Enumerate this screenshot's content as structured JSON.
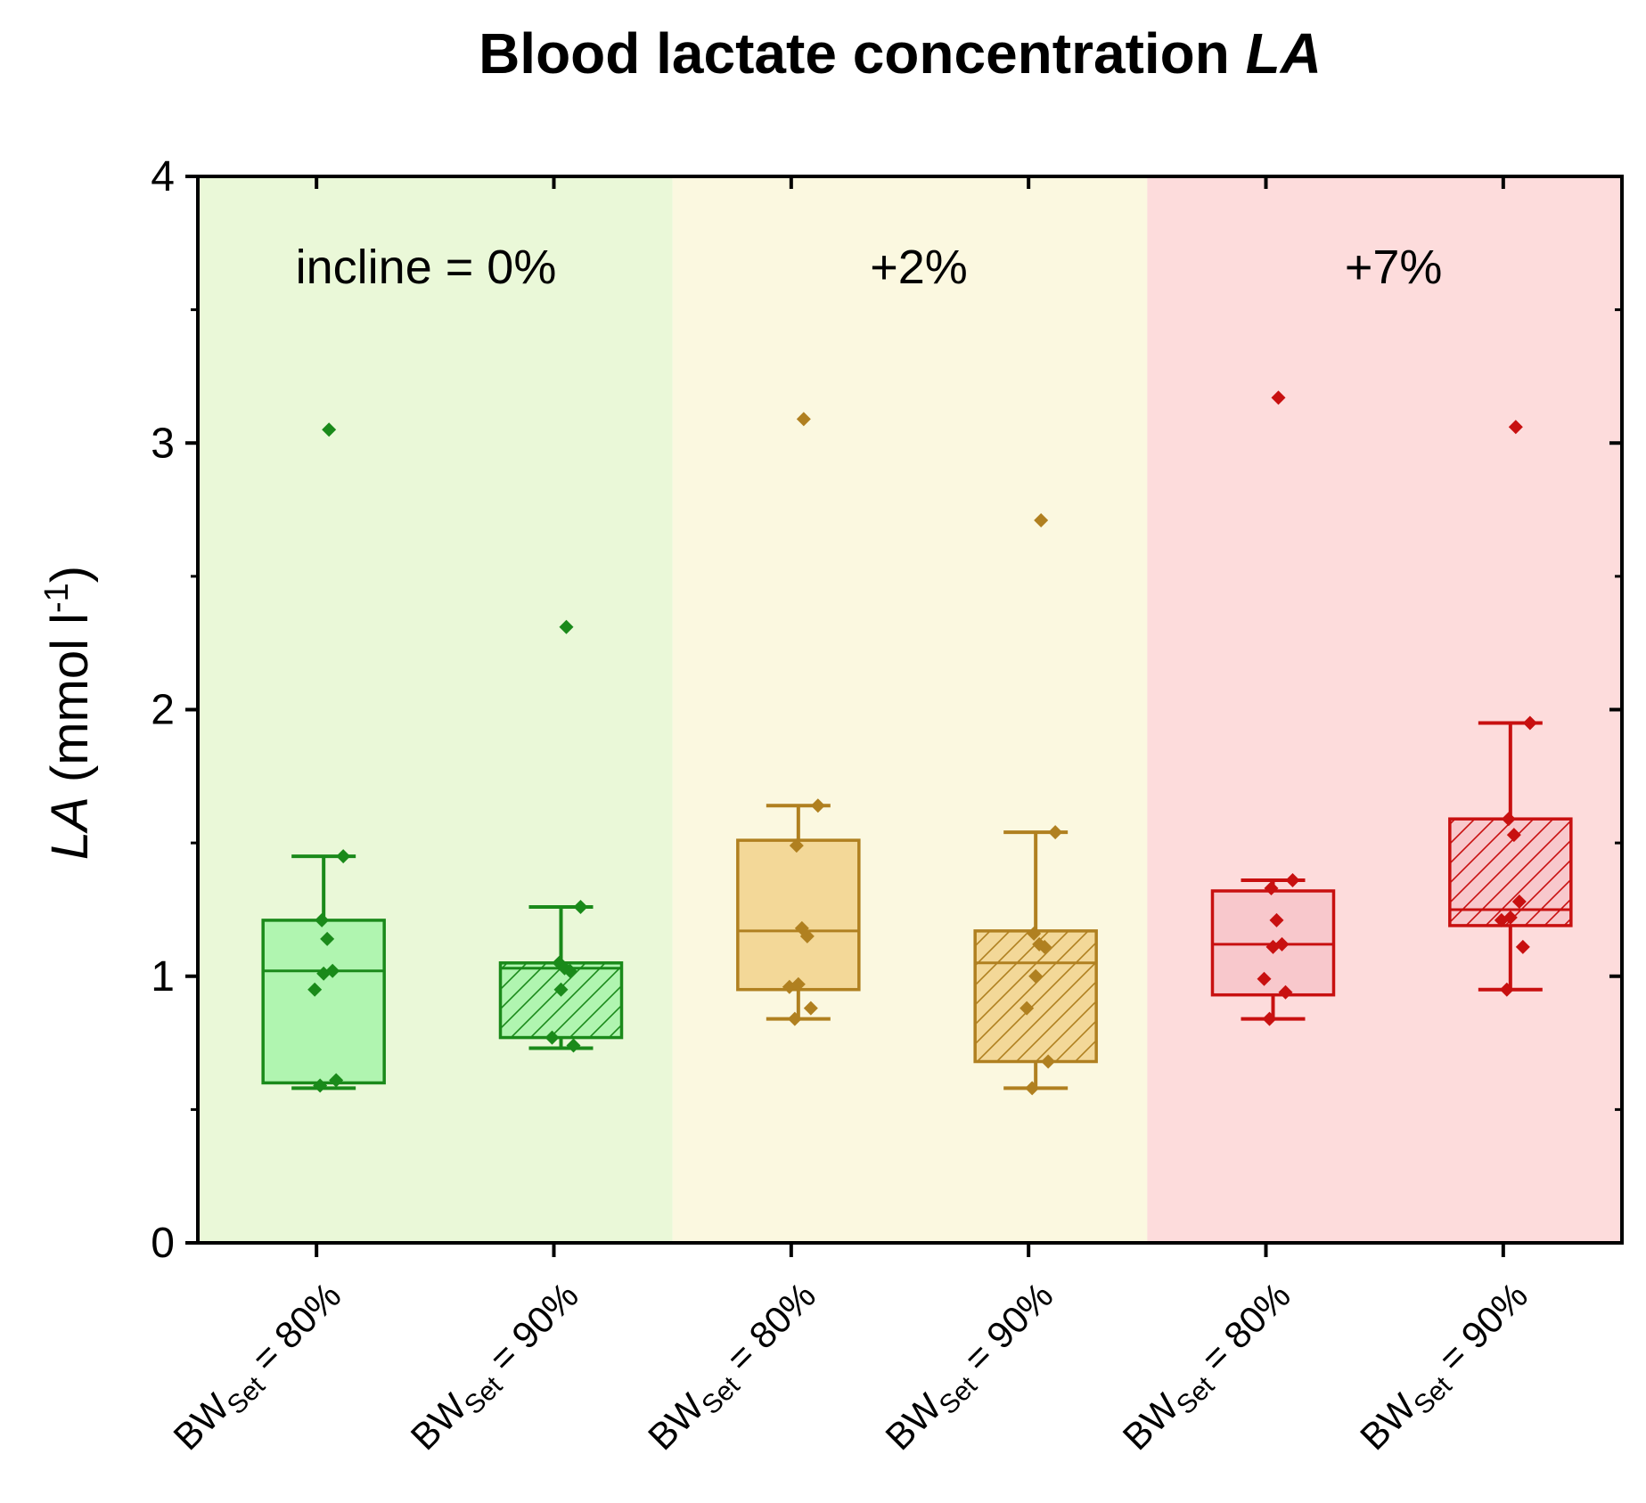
{
  "chart_data": {
    "type": "box",
    "title": "Blood lactate concentration",
    "title_italic": "LA",
    "ylabel_italic": "LA",
    "ylabel_rest": " (mmol l",
    "ylabel_sup": "-1",
    "ylabel_close": ")",
    "ylim": [
      0,
      4
    ],
    "yticks": [
      "0",
      "1",
      "2",
      "3",
      "4"
    ],
    "regions": [
      {
        "label": "incline = 0%",
        "color": "#eaf8d8",
        "accent": "#1a8a1a",
        "fill": "#b0f5b0"
      },
      {
        "label": "+2%",
        "color": "#fbf8e0",
        "accent": "#b08020",
        "fill": "#f3d898"
      },
      {
        "label": "+7%",
        "color": "#fddcdc",
        "accent": "#c81010",
        "fill": "#f8c8cc"
      }
    ],
    "categories": [
      {
        "prefix": "BW",
        "sub": "Set",
        "suffix": " = 80%",
        "region": 0,
        "hatched": false,
        "box": {
          "q1": 0.6,
          "median": 1.02,
          "q3": 1.21,
          "whisker_low": 0.58,
          "whisker_high": 1.45
        },
        "points": [
          3.05,
          1.45,
          1.21,
          1.14,
          1.02,
          1.01,
          0.95,
          0.61,
          0.59
        ]
      },
      {
        "prefix": "BW",
        "sub": "Set",
        "suffix": " = 90%",
        "region": 0,
        "hatched": true,
        "box": {
          "q1": 0.77,
          "median": 1.03,
          "q3": 1.05,
          "whisker_low": 0.73,
          "whisker_high": 1.26
        },
        "points": [
          2.31,
          1.26,
          1.05,
          1.03,
          1.02,
          0.95,
          0.77,
          0.74
        ]
      },
      {
        "prefix": "BW",
        "sub": "Set",
        "suffix": " = 80%",
        "region": 1,
        "hatched": false,
        "box": {
          "q1": 0.95,
          "median": 1.17,
          "q3": 1.51,
          "whisker_low": 0.84,
          "whisker_high": 1.64
        },
        "points": [
          3.09,
          1.64,
          1.49,
          1.18,
          1.15,
          0.97,
          0.96,
          0.88,
          0.84
        ]
      },
      {
        "prefix": "BW",
        "sub": "Set",
        "suffix": " = 90%",
        "region": 1,
        "hatched": true,
        "box": {
          "q1": 0.68,
          "median": 1.05,
          "q3": 1.17,
          "whisker_low": 0.58,
          "whisker_high": 1.54
        },
        "points": [
          2.71,
          1.54,
          1.16,
          1.12,
          1.11,
          1.0,
          0.88,
          0.68,
          0.58
        ]
      },
      {
        "prefix": "BW",
        "sub": "Set",
        "suffix": " = 80%",
        "region": 2,
        "hatched": false,
        "box": {
          "q1": 0.93,
          "median": 1.12,
          "q3": 1.32,
          "whisker_low": 0.84,
          "whisker_high": 1.36
        },
        "points": [
          3.17,
          1.36,
          1.33,
          1.21,
          1.12,
          1.11,
          0.99,
          0.94,
          0.84
        ]
      },
      {
        "prefix": "BW",
        "sub": "Set",
        "suffix": " = 90%",
        "region": 2,
        "hatched": true,
        "box": {
          "q1": 1.19,
          "median": 1.25,
          "q3": 1.59,
          "whisker_low": 0.95,
          "whisker_high": 1.95
        },
        "points": [
          3.06,
          1.95,
          1.59,
          1.53,
          1.28,
          1.22,
          1.21,
          1.11,
          0.95
        ]
      }
    ]
  }
}
